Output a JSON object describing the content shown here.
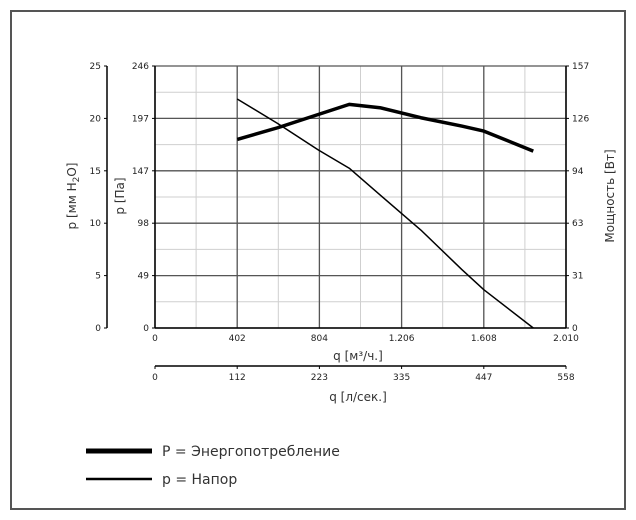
{
  "chart_data": {
    "type": "line",
    "x_primary": {
      "label_q": "q",
      "label_unit": "[м³/ч.]",
      "ticks": [
        "0",
        "402",
        "804",
        "1.206",
        "1.608",
        "2.010"
      ],
      "range": [
        0,
        2010
      ]
    },
    "x_secondary": {
      "label": "q [л/сек.]",
      "ticks": [
        "0",
        "112",
        "223",
        "335",
        "447",
        "558"
      ]
    },
    "y_mm": {
      "label_p": "p [мм H",
      "label_sub": "2",
      "label_end": "O]",
      "ticks": [
        "0",
        "5",
        "10",
        "15",
        "20",
        "25"
      ]
    },
    "y_pa": {
      "label": "p [Па]",
      "ticks": [
        "0",
        "49",
        "98",
        "147",
        "197",
        "246"
      ],
      "range": [
        0,
        246
      ]
    },
    "y_right": {
      "label": "Мощность [Вт]",
      "ticks": [
        "0",
        "31",
        "63",
        "94",
        "126",
        "157"
      ],
      "range": [
        0,
        157
      ]
    },
    "grid": true,
    "series": [
      {
        "name": "P = Энергопотребление",
        "axis": "right",
        "color": "#000000",
        "x": [
          402,
          600,
          800,
          950,
          1100,
          1300,
          1500,
          1608,
          1850
        ],
        "values": [
          113,
          120,
          128,
          134,
          132,
          126,
          121,
          118,
          106
        ]
      },
      {
        "name": "p = Напор",
        "axis": "left",
        "color": "#000000",
        "x": [
          402,
          600,
          800,
          950,
          1100,
          1300,
          1500,
          1608,
          1850
        ],
        "values": [
          215,
          192,
          167,
          150,
          125,
          92,
          55,
          36,
          0
        ]
      }
    ]
  }
}
